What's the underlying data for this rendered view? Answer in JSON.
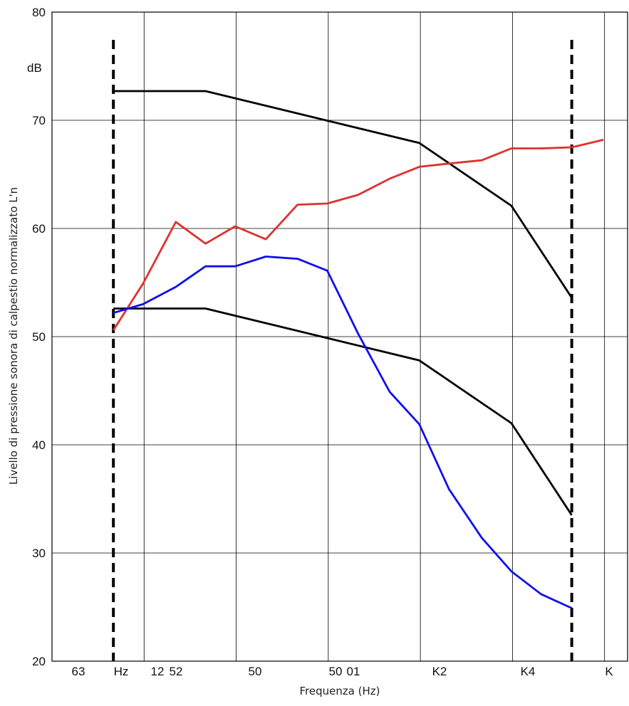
{
  "chart_data": {
    "type": "line",
    "xlabel": "Frequenza (Hz)",
    "ylabel": "Livello di pressione sonora di calpestio normalizzato L'n",
    "unit_label": "dB",
    "ylim": [
      20,
      80
    ],
    "y_ticks": [
      20,
      30,
      40,
      50,
      60,
      70,
      80
    ],
    "x_tick_labels": [
      "63",
      "Hz",
      "12",
      "52",
      "50",
      "50",
      "01",
      "K2",
      "K4",
      "K"
    ],
    "x_range_octaves": [
      0,
      6.25
    ],
    "grid": true,
    "colors": {
      "reference": "#000000",
      "red_series": "#e03030",
      "blue_series": "#1010ee",
      "grid": "#000000"
    },
    "series": [
      {
        "color": "#000000",
        "x": [
          "100",
          "200",
          "1000",
          "2000",
          "3150"
        ],
        "y": [
          72.7,
          72.7,
          67.9,
          62.1,
          53.6
        ]
      },
      {
        "color": "#000000",
        "x": [
          "100",
          "200",
          "1000",
          "2000",
          "3150"
        ],
        "y": [
          52.6,
          52.6,
          47.8,
          42.0,
          33.5
        ]
      },
      {
        "color": "#e03030",
        "x": [
          "100",
          "125",
          "160",
          "200",
          "250",
          "315",
          "400",
          "500",
          "630",
          "800",
          "1000",
          "1250",
          "1600",
          "2000",
          "2500",
          "3150",
          "4000"
        ],
        "y": [
          50.6,
          54.9,
          60.6,
          58.6,
          60.2,
          59.0,
          62.2,
          62.3,
          63.1,
          64.6,
          65.7,
          66.0,
          66.3,
          67.4,
          67.4,
          67.5,
          68.2
        ]
      },
      {
        "color": "#1010ee",
        "x": [
          "100",
          "125",
          "160",
          "200",
          "250",
          "315",
          "400",
          "500",
          "630",
          "800",
          "1000",
          "1250",
          "1600",
          "2000",
          "2500",
          "3150"
        ],
        "y": [
          52.2,
          53.0,
          54.6,
          56.5,
          56.5,
          57.4,
          57.2,
          56.1,
          50.3,
          44.9,
          41.9,
          35.9,
          31.4,
          28.3,
          26.2,
          24.9
        ]
      }
    ],
    "vertical_markers": [
      {
        "x": "100",
        "style": "dashed"
      },
      {
        "x": "3150",
        "style": "dashed"
      }
    ]
  }
}
